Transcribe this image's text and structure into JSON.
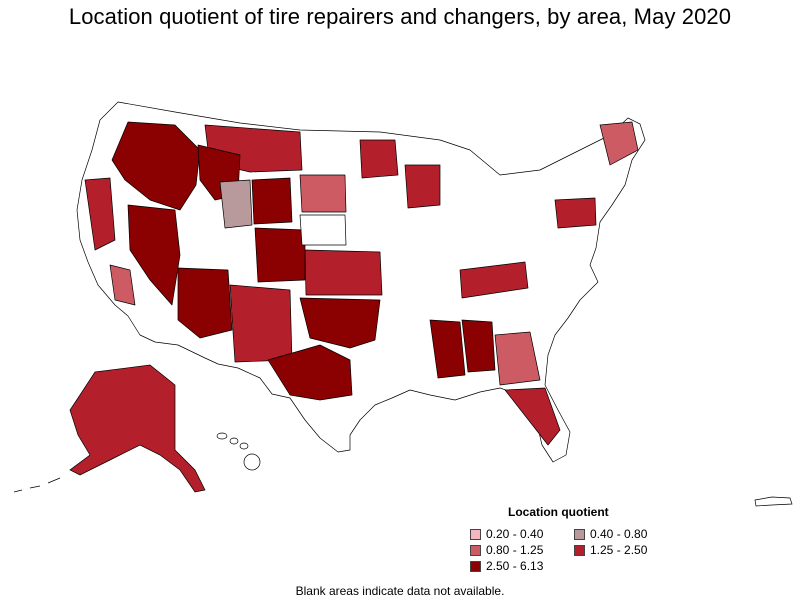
{
  "title": "Location quotient of tire repairers and changers, by area, May 2020",
  "legend": {
    "title": "Location quotient",
    "items": [
      {
        "label": "0.20 - 0.40",
        "color": "#f4b6c0"
      },
      {
        "label": "0.40 - 0.80",
        "color": "#b99a9c"
      },
      {
        "label": "0.80 - 1.25",
        "color": "#cd5b63"
      },
      {
        "label": "1.25 - 2.50",
        "color": "#b3202c"
      },
      {
        "label": "2.50 - 6.13",
        "color": "#8b0000"
      }
    ]
  },
  "note": "Blank areas indicate data not available.",
  "colors": {
    "outline": "#000000",
    "blank": "#ffffff"
  }
}
